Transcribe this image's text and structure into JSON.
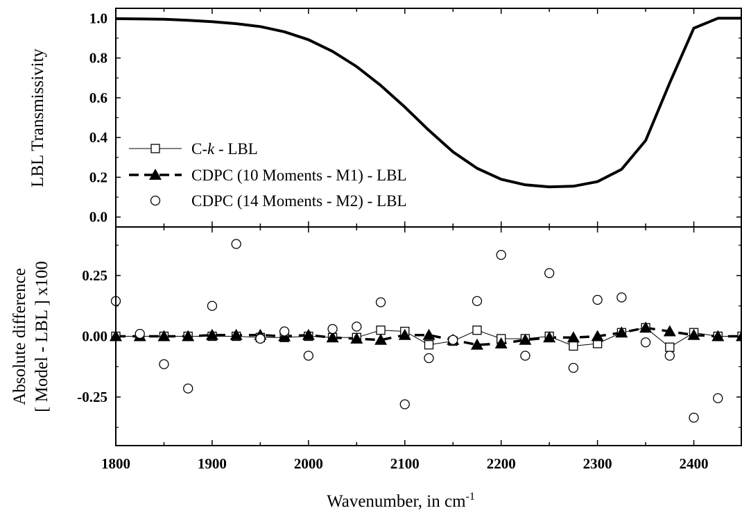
{
  "chart_data": [
    {
      "type": "line",
      "panel": "top",
      "xlim": [
        1800,
        2450
      ],
      "ylim": [
        -0.05,
        1.05
      ],
      "yticks": [
        "0.0",
        "0.2",
        "0.4",
        "0.6",
        "0.8",
        "1.0"
      ],
      "ytick_values": [
        0,
        0.2,
        0.4,
        0.6,
        0.8,
        1.0
      ],
      "ylabel": "LBL Transmissivity",
      "series": [
        {
          "x": [
            1800,
            1825,
            1850,
            1875,
            1900,
            1925,
            1950,
            1975,
            2000,
            2025,
            2050,
            2075,
            2100,
            2125,
            2150,
            2175,
            2200,
            2225,
            2250,
            2275,
            2300,
            2325,
            2350,
            2375,
            2400,
            2425,
            2450
          ],
          "values": [
            0.998,
            0.997,
            0.995,
            0.99,
            0.983,
            0.973,
            0.958,
            0.932,
            0.892,
            0.833,
            0.757,
            0.662,
            0.553,
            0.436,
            0.328,
            0.245,
            0.19,
            0.162,
            0.152,
            0.155,
            0.178,
            0.24,
            0.385,
            0.675,
            0.95,
            1.0,
            1.0
          ]
        }
      ]
    },
    {
      "type": "scatter",
      "panel": "bottom",
      "xlim": [
        1800,
        2450
      ],
      "ylim": [
        -0.45,
        0.45
      ],
      "xticks": [
        "1800",
        "1900",
        "2000",
        "2100",
        "2200",
        "2300",
        "2400"
      ],
      "xtick_values": [
        1800,
        1900,
        2000,
        2100,
        2200,
        2300,
        2400
      ],
      "yticks": [
        "-0.25",
        "0.00",
        "0.25"
      ],
      "ytick_values": [
        -0.25,
        0,
        0.25
      ],
      "ylabel_lines": [
        "Absolute difference",
        "[ Model - LBL ] x100"
      ],
      "xlabel_main": "Wavenumber, in cm",
      "xlabel_sup": "-1",
      "x": [
        1800,
        1825,
        1850,
        1875,
        1900,
        1925,
        1950,
        1975,
        2000,
        2025,
        2050,
        2075,
        2100,
        2125,
        2150,
        2175,
        2200,
        2225,
        2250,
        2275,
        2300,
        2325,
        2350,
        2375,
        2400,
        2425,
        2450
      ],
      "series": [
        {
          "label_prefix": "C-",
          "label_italic": "k",
          "label_suffix": " - LBL",
          "marker": "open-square",
          "line": "thin-solid",
          "values": [
            0.0,
            0.0,
            0.0,
            0.0,
            0.0,
            0.0,
            -0.005,
            -0.005,
            0.0,
            -0.005,
            -0.005,
            0.025,
            0.02,
            -0.035,
            -0.02,
            0.025,
            -0.01,
            -0.01,
            0.0,
            -0.04,
            -0.03,
            0.015,
            0.035,
            -0.045,
            0.015,
            0.0,
            0.0
          ]
        },
        {
          "label": "CDPC (10 Moments - M1) - LBL",
          "marker": "filled-triangle",
          "line": "thick-dashed",
          "values": [
            0.0,
            0.0,
            0.0,
            0.0,
            0.005,
            0.005,
            0.005,
            0.0,
            0.005,
            -0.005,
            -0.01,
            -0.015,
            0.005,
            0.005,
            -0.015,
            -0.035,
            -0.03,
            -0.015,
            -0.005,
            -0.005,
            0.0,
            0.015,
            0.035,
            0.02,
            0.005,
            0.0,
            0.0
          ]
        },
        {
          "label": "CDPC (14 Moments - M2) - LBL",
          "marker": "open-circle",
          "line": "none",
          "x": [
            1800,
            1825,
            1850,
            1875,
            1900,
            1925,
            1950,
            1975,
            2000,
            2025,
            2050,
            2075,
            2100,
            2125,
            2150,
            2175,
            2200,
            2225,
            2250,
            2275,
            2300,
            2325,
            2350,
            2375,
            2400,
            2425
          ],
          "values": [
            0.145,
            0.01,
            -0.115,
            -0.215,
            0.125,
            0.38,
            -0.01,
            0.02,
            -0.08,
            0.03,
            0.04,
            0.14,
            -0.28,
            -0.09,
            -0.015,
            0.145,
            0.335,
            -0.08,
            0.26,
            -0.13,
            0.15,
            0.16,
            -0.025,
            -0.08,
            -0.335,
            -0.255
          ]
        }
      ]
    }
  ]
}
